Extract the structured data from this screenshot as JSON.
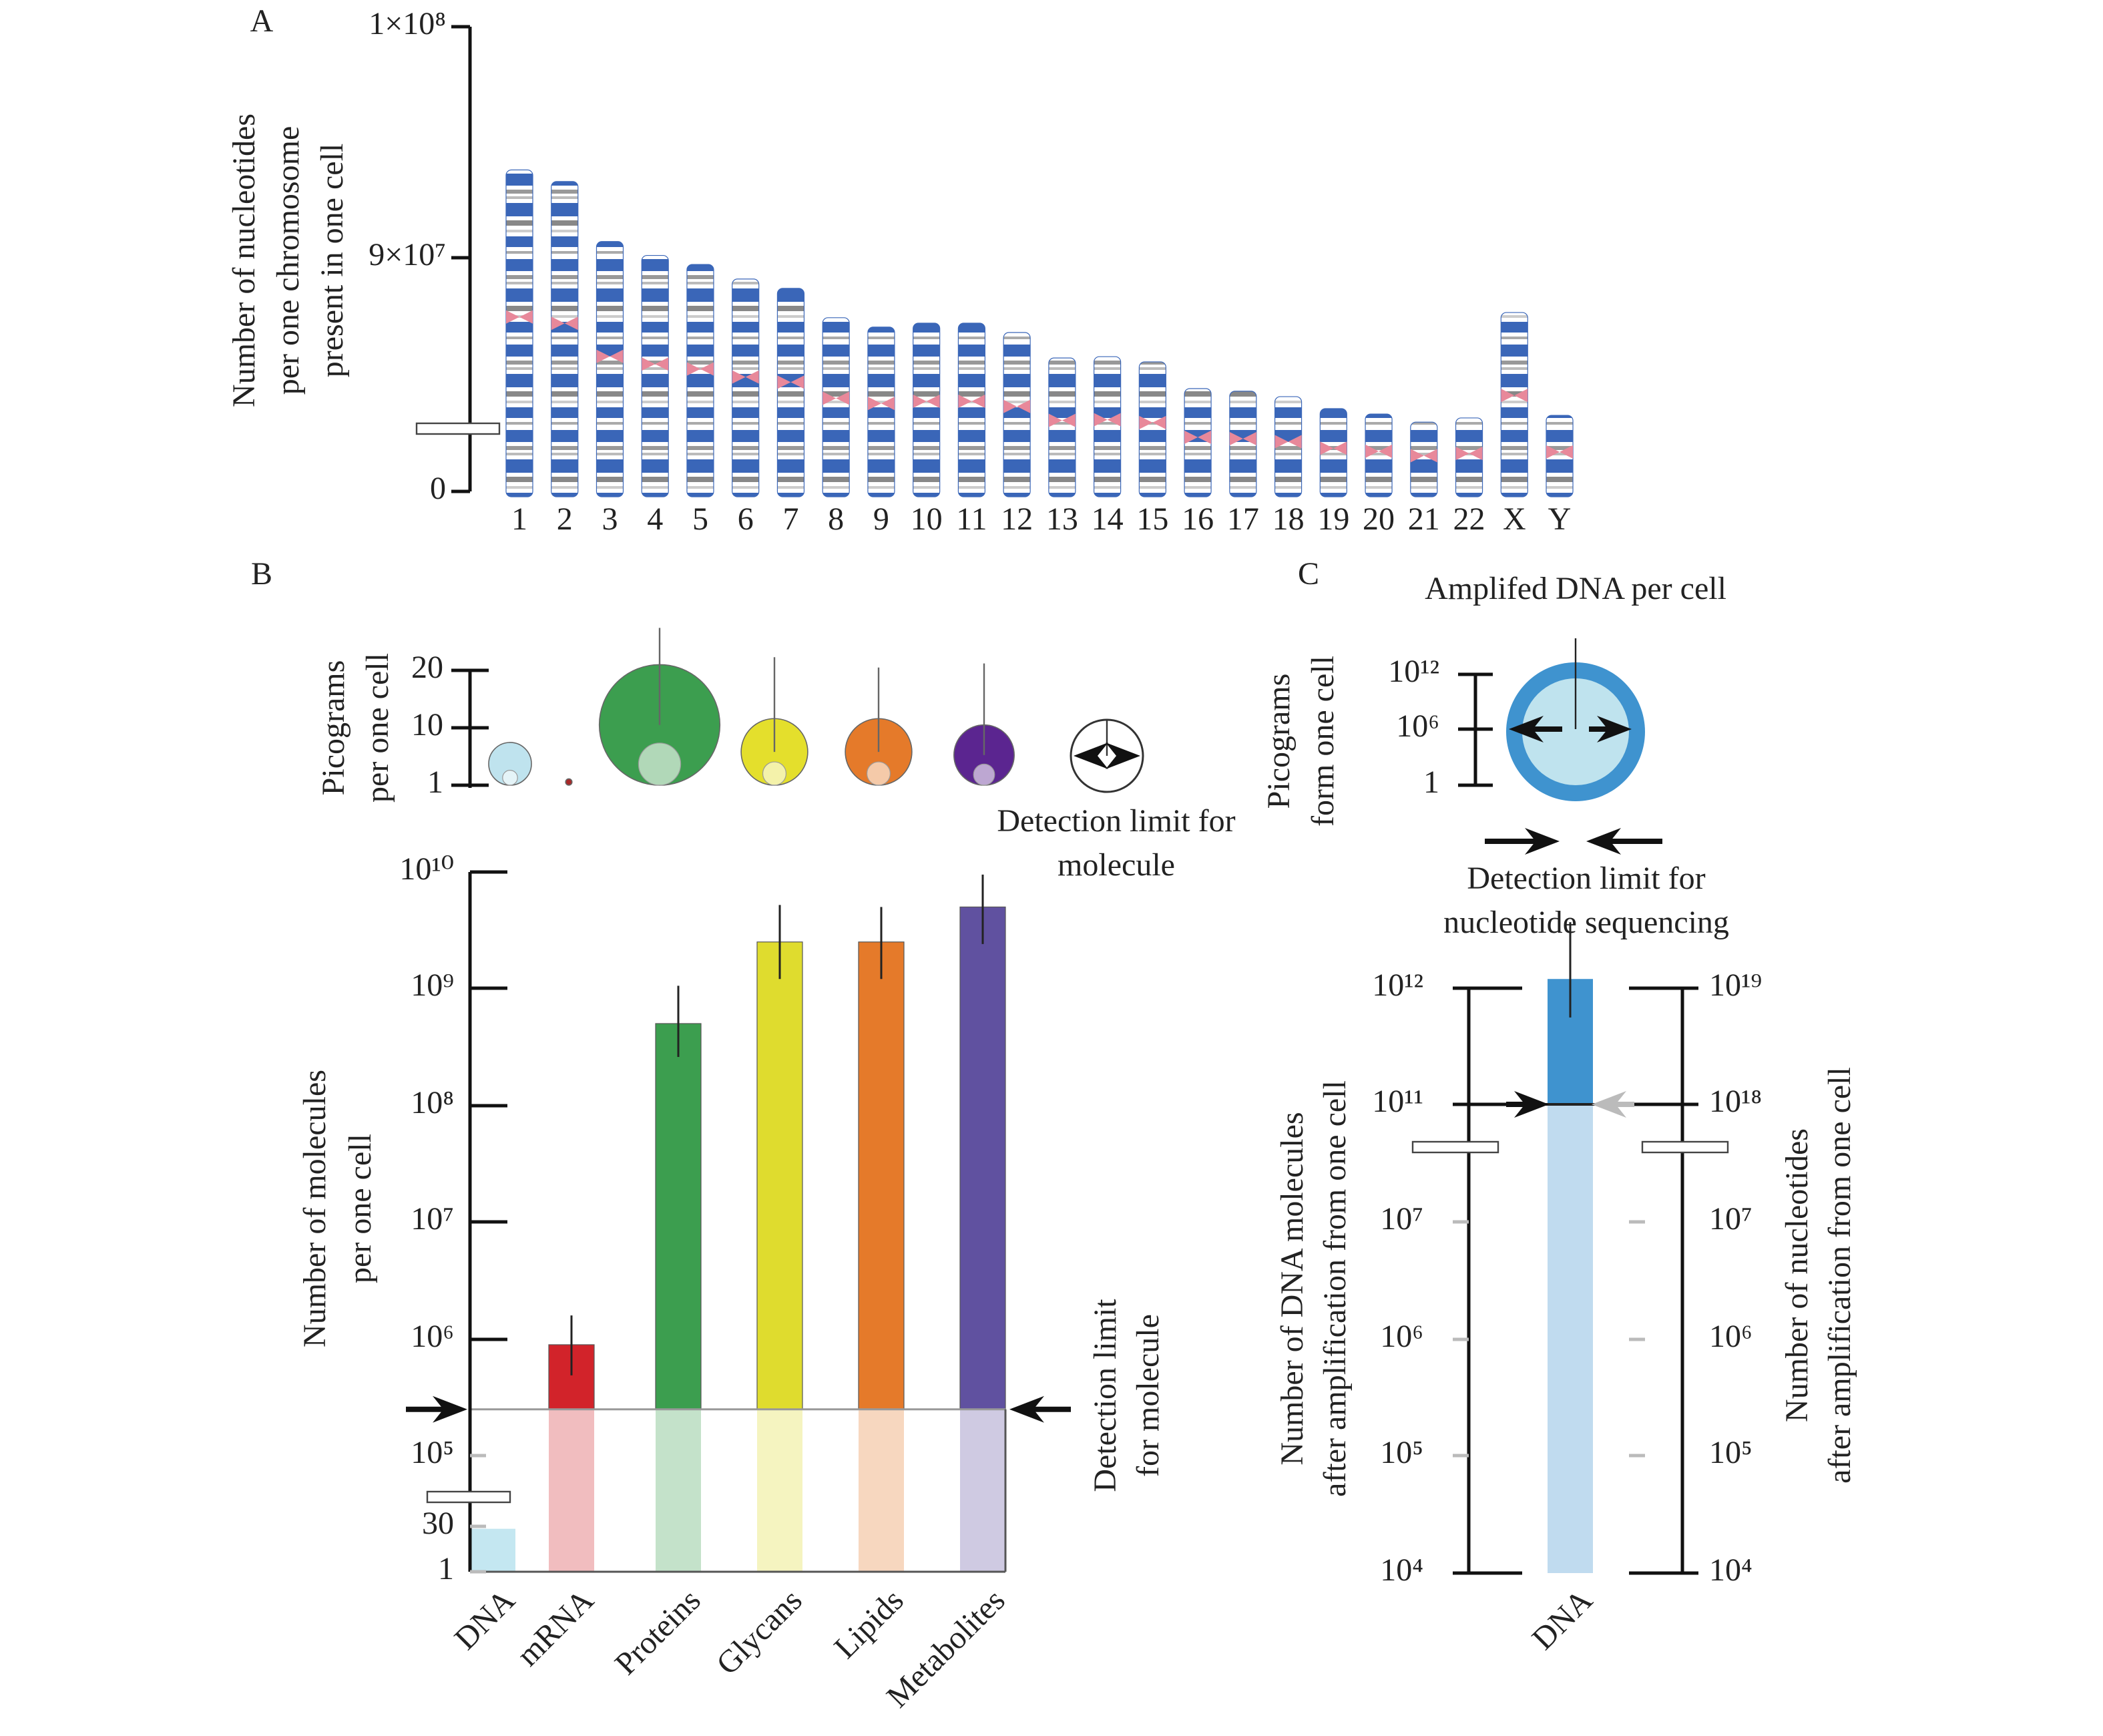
{
  "chart_data": [
    {
      "type": "bar",
      "panel": "A",
      "ylabel": [
        "Number of nucleotides",
        "per one chromosome",
        "present in one cell"
      ],
      "categories": [
        "1",
        "2",
        "3",
        "4",
        "5",
        "6",
        "7",
        "8",
        "9",
        "10",
        "11",
        "12",
        "13",
        "14",
        "15",
        "16",
        "17",
        "18",
        "19",
        "20",
        "21",
        "22",
        "X",
        "Y"
      ],
      "values": [
        93800000,
        93300000,
        90700000,
        90100000,
        87400000,
        81800000,
        78200000,
        66900000,
        63300000,
        64800000,
        64800000,
        61200000,
        51400000,
        51900000,
        49900000,
        39600000,
        38600000,
        36500000,
        31900000,
        29800000,
        26700000,
        28300000,
        68900000,
        29300000
      ],
      "color": "#3a66b8",
      "ylim": [
        0,
        100000000
      ],
      "yticks": [
        0,
        {
          "value": 90000000,
          "label": "9×10⁷"
        },
        {
          "value": 100000000,
          "label": "1×10⁸"
        }
      ],
      "axis_break": true
    },
    {
      "type": "bubble",
      "panel": "B",
      "ylabel": [
        "Picograms",
        "per one cell"
      ],
      "values": [
        7.7,
        2,
        21,
        11.6,
        11.6,
        10.5
      ],
      "errors": [
        null,
        null,
        27.4,
        22.3,
        20.5,
        21.2
      ],
      "colors": [
        "#bfe3ee",
        "#a82828",
        "#3c9e4f",
        "#e4df2c",
        "#e57a2a",
        "#5b2590"
      ],
      "ylim": [
        1,
        20
      ],
      "yticks": [
        1,
        10,
        20
      ],
      "annotation": [
        "Detection limit for",
        "molecule"
      ]
    },
    {
      "type": "bar",
      "ylabel": [
        "Number of molecules",
        "per one cell"
      ],
      "categories": [
        "DNA",
        "mRNA",
        "Proteins",
        "Glycans",
        "Lipids",
        "Metabolites"
      ],
      "values": [
        25,
        900000,
        500000000,
        2500000000,
        2500000000,
        5000000000
      ],
      "error_range": [
        null,
        [
          490000,
          1600000
        ],
        [
          260000000,
          1050000000
        ],
        [
          1200000000,
          5200000000
        ],
        [
          1200000000,
          5000000000
        ],
        [
          2400000000,
          9500000000
        ]
      ],
      "colors": [
        "#6cc3dd",
        "#d2232a",
        "#3c9e4f",
        "#dfdc2e",
        "#e57a2a",
        "#6051a0"
      ],
      "ylim": [
        1,
        10000000000
      ],
      "log_scale": true,
      "axis_break": true,
      "yticks": [
        1,
        30,
        {
          "value": 100000,
          "label": "10⁵"
        },
        {
          "value": 1000000,
          "label": "10⁶"
        },
        {
          "value": 10000000,
          "label": "10⁷"
        },
        {
          "value": 100000000,
          "label": "10⁸"
        },
        {
          "value": 1000000000,
          "label": "10⁹"
        },
        {
          "value": 10000000000,
          "label": "10¹⁰"
        }
      ],
      "detection_limit": 250000,
      "annotation": [
        "Detection limit",
        "for molecule"
      ]
    },
    {
      "type": "circle",
      "panel": "C",
      "title": "Amplifed DNA per cell",
      "ylabel": [
        "Picograms",
        "form one cell"
      ],
      "ylim": [
        1,
        1000000000000
      ],
      "log_scale": true,
      "yticks": [
        1,
        {
          "value": 1000000,
          "label": "10⁶"
        },
        {
          "value": 1000000000000,
          "label": "10¹²"
        }
      ],
      "annotation": [
        "Detection limit for",
        "nucleotide sequencing"
      ]
    },
    {
      "type": "bar",
      "ylabel": [
        "Number of DNA molecules",
        "after amplification from one cell"
      ],
      "y2label": [
        "Number of nucleotides",
        "after amplification from one cell"
      ],
      "categories": [
        "DNA"
      ],
      "values": [
        1200000000000
      ],
      "error_range": [
        [
          560000000000,
          3700000000000
        ]
      ],
      "color": "#3f93cf",
      "log_scale": true,
      "axis_break": true,
      "detection_limit": 100000000000,
      "ylim": [
        10000,
        1000000000000
      ],
      "yticks": [
        {
          "value": 10000,
          "label": "10⁴"
        },
        {
          "value": 100000,
          "label": "10⁵"
        },
        {
          "value": 1000000,
          "label": "10⁶"
        },
        {
          "value": 10000000,
          "label": "10⁷"
        },
        {
          "value": 100000000000,
          "label": "10¹¹"
        },
        {
          "value": 1000000000000,
          "label": "10¹²"
        }
      ],
      "y2lim": [
        10000,
        10000000000000000000
      ],
      "y2ticks": [
        {
          "value": 10000,
          "label": "10⁴"
        },
        {
          "value": 100000,
          "label": "10⁵"
        },
        {
          "value": 1000000,
          "label": "10⁶"
        },
        {
          "value": 10000000,
          "label": "10⁷"
        },
        {
          "value": 1000000000000000000,
          "label": "10¹⁸"
        },
        {
          "value": 10000000000000000000,
          "label": "10¹⁹"
        }
      ]
    }
  ]
}
